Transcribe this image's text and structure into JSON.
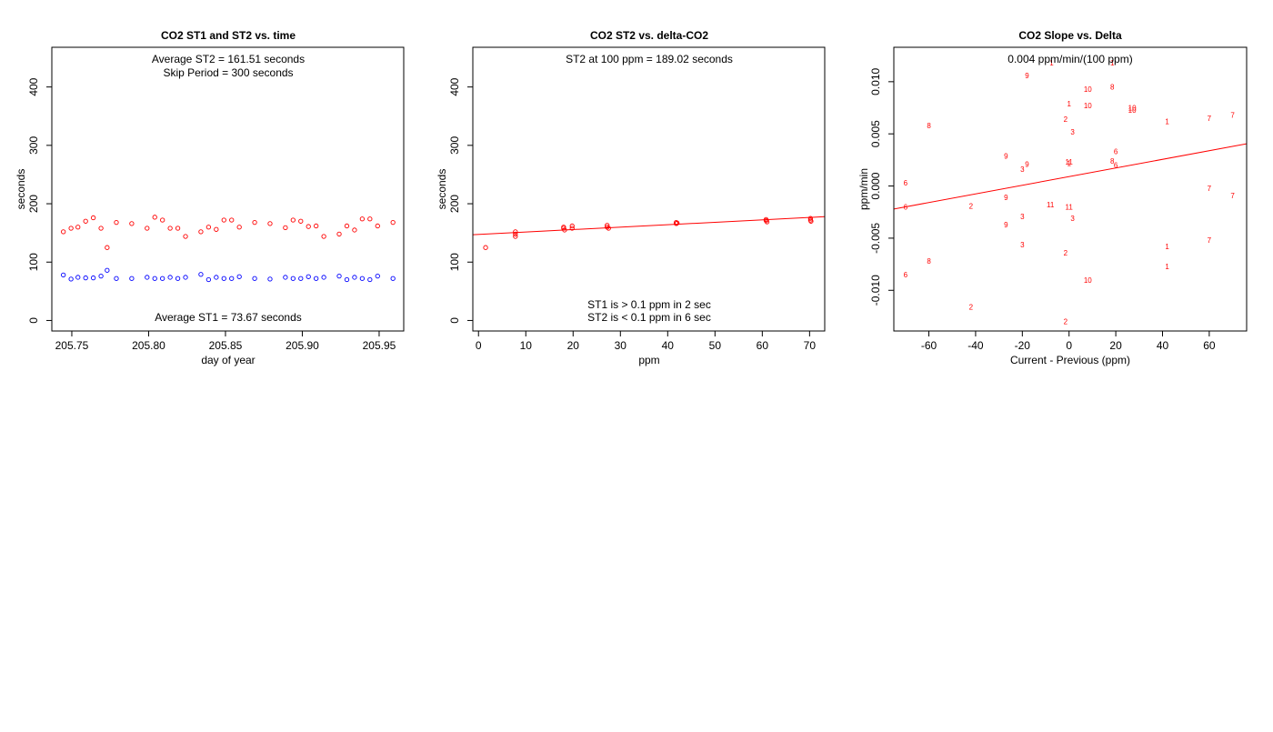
{
  "colors": {
    "st2": "#ff0000",
    "st1": "#0000ff",
    "fit": "#ff0000",
    "labels": "#ff0000"
  },
  "chart_data": [
    {
      "id": "p1",
      "type": "scatter",
      "title": "CO2 ST1 and ST2 vs. time",
      "xlabel": "day of year",
      "ylabel": "seconds",
      "xlim": [
        205.737,
        205.966
      ],
      "ylim": [
        -18,
        468
      ],
      "xticks": [
        205.75,
        205.8,
        205.85,
        205.9,
        205.95
      ],
      "xtick_labels": [
        "205.75",
        "205.80",
        "205.85",
        "205.90",
        "205.95"
      ],
      "yticks": [
        0,
        100,
        200,
        300,
        400
      ],
      "ytick_labels": [
        "0",
        "100",
        "200",
        "300",
        "400"
      ],
      "annotations": [
        {
          "text": "Average ST2 =  161.51  seconds",
          "pos": "top-1"
        },
        {
          "text": "Skip Period =  300  seconds",
          "pos": "top-2"
        },
        {
          "text": "Average ST1 =  73.67  seconds",
          "pos": "bottom-1"
        }
      ],
      "series": [
        {
          "name": "ST2",
          "marker": "circle",
          "color": "#ff0000",
          "x": [
            205.7445,
            205.7495,
            205.754,
            205.759,
            205.764,
            205.769,
            205.773,
            205.779,
            205.789,
            205.799,
            205.804,
            205.809,
            205.814,
            205.819,
            205.824,
            205.834,
            205.839,
            205.844,
            205.849,
            205.854,
            205.859,
            205.869,
            205.879,
            205.889,
            205.894,
            205.899,
            205.904,
            205.909,
            205.914,
            205.924,
            205.929,
            205.934,
            205.939,
            205.944,
            205.949,
            205.959
          ],
          "y": [
            152,
            158,
            160,
            170,
            176,
            158,
            125,
            168,
            166,
            158,
            177,
            172,
            158,
            158,
            144,
            152,
            160,
            156,
            172,
            172,
            160,
            168,
            166,
            159,
            172,
            170,
            161,
            162,
            144,
            148,
            162,
            155,
            174,
            174,
            162,
            168
          ]
        },
        {
          "name": "ST1",
          "marker": "circle",
          "color": "#0000ff",
          "x": [
            205.7445,
            205.7495,
            205.754,
            205.759,
            205.764,
            205.769,
            205.773,
            205.779,
            205.789,
            205.799,
            205.804,
            205.809,
            205.814,
            205.819,
            205.824,
            205.834,
            205.839,
            205.844,
            205.849,
            205.854,
            205.859,
            205.869,
            205.879,
            205.889,
            205.894,
            205.899,
            205.904,
            205.909,
            205.914,
            205.924,
            205.929,
            205.934,
            205.939,
            205.944,
            205.949,
            205.959
          ],
          "y": [
            78,
            71,
            74,
            73,
            73,
            76,
            86,
            72,
            72,
            74,
            72,
            72,
            74,
            72,
            74,
            79,
            70,
            74,
            72,
            72,
            75,
            72,
            71,
            74,
            72,
            72,
            75,
            72,
            74,
            76,
            70,
            74,
            72,
            70,
            76,
            72
          ]
        }
      ]
    },
    {
      "id": "p2",
      "type": "scatter",
      "title": "CO2 ST2 vs. delta-CO2",
      "xlabel": "ppm",
      "ylabel": "seconds",
      "xlim": [
        -1.2,
        73.2
      ],
      "ylim": [
        -18,
        468
      ],
      "xticks": [
        0,
        10,
        20,
        30,
        40,
        50,
        60,
        70
      ],
      "xtick_labels": [
        "0",
        "10",
        "20",
        "30",
        "40",
        "50",
        "60",
        "70"
      ],
      "yticks": [
        0,
        100,
        200,
        300,
        400
      ],
      "ytick_labels": [
        "0",
        "100",
        "200",
        "300",
        "400"
      ],
      "annotations": [
        {
          "text": "ST2 at 100 ppm =  189.02  seconds",
          "pos": "top-1"
        },
        {
          "text": "ST1 is > 0.1 ppm in 2 sec",
          "pos": "bottom-2"
        },
        {
          "text": "ST2 is < 0.1 ppm in 6 sec",
          "pos": "bottom-1"
        }
      ],
      "series": [
        {
          "name": "ST2",
          "marker": "circle",
          "color": "#ff0000",
          "x": [
            1.5,
            7.8,
            7.8,
            7.8,
            18.0,
            18.0,
            18.2,
            19.8,
            19.8,
            27.2,
            27.2,
            27.5,
            41.8,
            41.8,
            42.0,
            60.8,
            60.8,
            61.0,
            70.2,
            70.2,
            70.3
          ],
          "y": [
            125,
            152,
            148,
            144,
            160,
            158,
            155,
            162,
            158,
            163,
            160,
            158,
            168,
            166,
            167,
            173,
            171,
            169,
            175,
            172,
            170
          ]
        }
      ],
      "fit_line": {
        "intercept": 147.4,
        "slope": 0.416
      }
    },
    {
      "id": "p3",
      "type": "scatter",
      "title": "CO2 Slope vs. Delta",
      "xlabel": "Current - Previous (ppm)",
      "ylabel": "ppm/min",
      "xlim": [
        -75,
        76
      ],
      "ylim": [
        -0.0139,
        0.0133
      ],
      "xticks": [
        -60,
        -40,
        -20,
        0,
        20,
        40,
        60
      ],
      "xtick_labels": [
        "-60",
        "-40",
        "-20",
        "0",
        "20",
        "40",
        "60"
      ],
      "yticks": [
        -0.01,
        -0.005,
        0.0,
        0.005,
        0.01
      ],
      "ytick_labels": [
        "-0.010",
        "-0.005",
        "0.000",
        "0.005",
        "0.010"
      ],
      "annotations": [
        {
          "text": "0.004  ppm/min/(100 ppm)",
          "pos": "top-1"
        }
      ],
      "point_labels": {
        "x": [
          -7.5,
          -18.0,
          18.5,
          8.0,
          0.0,
          18.5,
          8.0,
          -60.0,
          42.0,
          -1.5,
          60.0,
          27.0,
          27.0,
          70.0,
          1.5,
          20.0,
          -27.0,
          -18.0,
          0.0,
          0.0,
          -20.0,
          18.5,
          20.0,
          -70.0,
          -70.0,
          60.0,
          70.0,
          -27.0,
          -42.0,
          -8.0,
          0.0,
          -20.0,
          1.5,
          -27.0,
          -20.0,
          42.0,
          -1.5,
          60.0,
          -60.0,
          42.0,
          -70.0,
          8.0,
          -42.0,
          -1.5
        ],
        "y": [
          0.0118,
          0.0106,
          0.0118,
          0.0093,
          0.0079,
          0.0095,
          0.0077,
          0.0058,
          0.0062,
          0.0064,
          0.0065,
          0.0075,
          0.0073,
          0.0068,
          0.0052,
          0.0033,
          0.0029,
          0.0021,
          0.0023,
          0.0022,
          0.0016,
          0.0024,
          0.002,
          0.0003,
          -0.002,
          -0.0002,
          -0.0009,
          -0.0011,
          -0.0019,
          -0.0018,
          -0.002,
          -0.0029,
          -0.0031,
          -0.0037,
          -0.0056,
          -0.0058,
          -0.0064,
          -0.0052,
          -0.0072,
          -0.0077,
          -0.0085,
          -0.009,
          -0.0116,
          -0.013
        ],
        "labels": [
          "1",
          "9",
          "1",
          "10",
          "1",
          "8",
          "10",
          "8",
          "1",
          "2",
          "7",
          "10",
          "10",
          "7",
          "3",
          "6",
          "9",
          "9",
          "11",
          "1",
          "3",
          "8",
          "6",
          "6",
          "6",
          "7",
          "7",
          "9",
          "2",
          "11",
          "11",
          "3",
          "3",
          "9",
          "3",
          "1",
          "2",
          "7",
          "8",
          "1",
          "6",
          "10",
          "2",
          "2"
        ]
      },
      "fit_line": {
        "intercept": 0.0009,
        "slope": 4.14e-05
      }
    }
  ]
}
